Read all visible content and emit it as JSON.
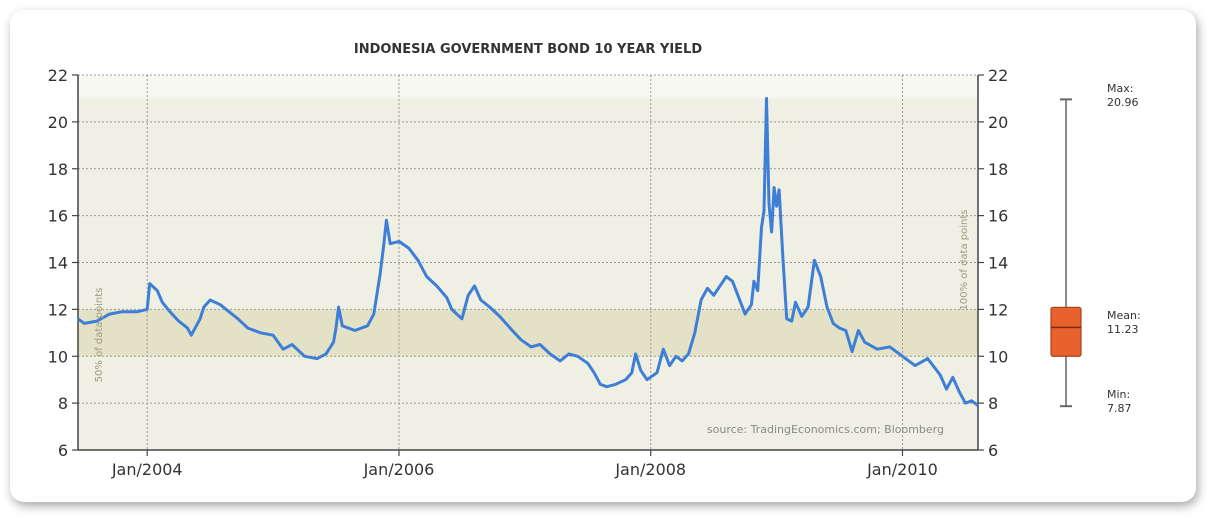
{
  "chart_data": {
    "type": "line",
    "title": "INDONESIA GOVERNMENT BOND 10 YEAR YIELD",
    "source_note": "source: TradingEconomics.com; Bloomberg",
    "ylim": [
      6,
      22
    ],
    "y_ticks": [
      6,
      8,
      10,
      12,
      14,
      16,
      18,
      20,
      22
    ],
    "x_tick_labels": [
      "Jan/2004",
      "Jan/2006",
      "Jan/2008",
      "Jan/2010"
    ],
    "x_tick_years": [
      2004.0,
      2006.0,
      2008.0,
      2010.0
    ],
    "x_range": [
      2003.45,
      2010.6
    ],
    "left_band_label": "50% of data points",
    "right_band_label": "100% of data points",
    "band_outer": [
      6,
      21
    ],
    "band_inner": [
      10,
      12
    ],
    "grid": true,
    "series": [
      {
        "color": "#3d7fd6",
        "points": [
          [
            2003.45,
            11.6
          ],
          [
            2003.5,
            11.4
          ],
          [
            2003.6,
            11.5
          ],
          [
            2003.7,
            11.8
          ],
          [
            2003.8,
            11.9
          ],
          [
            2003.92,
            11.9
          ],
          [
            2004.0,
            12.0
          ],
          [
            2004.02,
            13.1
          ],
          [
            2004.08,
            12.8
          ],
          [
            2004.12,
            12.3
          ],
          [
            2004.18,
            11.9
          ],
          [
            2004.25,
            11.5
          ],
          [
            2004.32,
            11.2
          ],
          [
            2004.35,
            10.9
          ],
          [
            2004.42,
            11.6
          ],
          [
            2004.45,
            12.1
          ],
          [
            2004.5,
            12.4
          ],
          [
            2004.58,
            12.2
          ],
          [
            2004.65,
            11.9
          ],
          [
            2004.72,
            11.6
          ],
          [
            2004.8,
            11.2
          ],
          [
            2004.9,
            11.0
          ],
          [
            2005.0,
            10.9
          ],
          [
            2005.08,
            10.3
          ],
          [
            2005.15,
            10.5
          ],
          [
            2005.25,
            10.0
          ],
          [
            2005.35,
            9.9
          ],
          [
            2005.42,
            10.1
          ],
          [
            2005.48,
            10.6
          ],
          [
            2005.5,
            11.2
          ],
          [
            2005.52,
            12.1
          ],
          [
            2005.55,
            11.3
          ],
          [
            2005.65,
            11.1
          ],
          [
            2005.75,
            11.3
          ],
          [
            2005.8,
            11.8
          ],
          [
            2005.85,
            13.5
          ],
          [
            2005.88,
            14.8
          ],
          [
            2005.9,
            15.8
          ],
          [
            2005.93,
            14.8
          ],
          [
            2006.0,
            14.9
          ],
          [
            2006.08,
            14.6
          ],
          [
            2006.15,
            14.1
          ],
          [
            2006.22,
            13.4
          ],
          [
            2006.3,
            13.0
          ],
          [
            2006.38,
            12.5
          ],
          [
            2006.42,
            12.0
          ],
          [
            2006.5,
            11.6
          ],
          [
            2006.55,
            12.6
          ],
          [
            2006.6,
            13.0
          ],
          [
            2006.65,
            12.4
          ],
          [
            2006.72,
            12.1
          ],
          [
            2006.8,
            11.7
          ],
          [
            2006.9,
            11.1
          ],
          [
            2006.97,
            10.7
          ],
          [
            2007.05,
            10.4
          ],
          [
            2007.12,
            10.5
          ],
          [
            2007.2,
            10.1
          ],
          [
            2007.28,
            9.8
          ],
          [
            2007.35,
            10.1
          ],
          [
            2007.42,
            10.0
          ],
          [
            2007.5,
            9.7
          ],
          [
            2007.55,
            9.3
          ],
          [
            2007.6,
            8.8
          ],
          [
            2007.65,
            8.7
          ],
          [
            2007.72,
            8.8
          ],
          [
            2007.8,
            9.0
          ],
          [
            2007.85,
            9.3
          ],
          [
            2007.88,
            10.1
          ],
          [
            2007.92,
            9.4
          ],
          [
            2007.97,
            9.0
          ],
          [
            2008.05,
            9.3
          ],
          [
            2008.1,
            10.3
          ],
          [
            2008.15,
            9.6
          ],
          [
            2008.2,
            10.0
          ],
          [
            2008.25,
            9.8
          ],
          [
            2008.3,
            10.1
          ],
          [
            2008.35,
            11.0
          ],
          [
            2008.4,
            12.4
          ],
          [
            2008.45,
            12.9
          ],
          [
            2008.5,
            12.6
          ],
          [
            2008.55,
            13.0
          ],
          [
            2008.6,
            13.4
          ],
          [
            2008.65,
            13.2
          ],
          [
            2008.7,
            12.5
          ],
          [
            2008.75,
            11.8
          ],
          [
            2008.8,
            12.2
          ],
          [
            2008.82,
            13.2
          ],
          [
            2008.85,
            12.8
          ],
          [
            2008.88,
            15.5
          ],
          [
            2008.9,
            16.2
          ],
          [
            2008.92,
            21.0
          ],
          [
            2008.94,
            16.5
          ],
          [
            2008.96,
            15.3
          ],
          [
            2008.98,
            17.2
          ],
          [
            2009.0,
            16.4
          ],
          [
            2009.02,
            17.1
          ],
          [
            2009.05,
            14.2
          ],
          [
            2009.08,
            11.6
          ],
          [
            2009.12,
            11.5
          ],
          [
            2009.15,
            12.3
          ],
          [
            2009.2,
            11.7
          ],
          [
            2009.25,
            12.1
          ],
          [
            2009.3,
            14.1
          ],
          [
            2009.35,
            13.4
          ],
          [
            2009.4,
            12.1
          ],
          [
            2009.45,
            11.4
          ],
          [
            2009.5,
            11.2
          ],
          [
            2009.55,
            11.1
          ],
          [
            2009.6,
            10.2
          ],
          [
            2009.65,
            11.1
          ],
          [
            2009.7,
            10.6
          ],
          [
            2009.8,
            10.3
          ],
          [
            2009.9,
            10.4
          ],
          [
            2010.0,
            10.0
          ],
          [
            2010.1,
            9.6
          ],
          [
            2010.2,
            9.9
          ],
          [
            2010.3,
            9.2
          ],
          [
            2010.35,
            8.6
          ],
          [
            2010.4,
            9.1
          ],
          [
            2010.45,
            8.5
          ],
          [
            2010.5,
            8.0
          ],
          [
            2010.55,
            8.1
          ],
          [
            2010.6,
            7.9
          ]
        ]
      }
    ],
    "side_panel": {
      "max_label": "Max:",
      "max_value": "20.96",
      "mean_label": "Mean:",
      "mean_value": "11.23",
      "min_label": "Min:",
      "min_value": "7.87",
      "box_color": "#e8622e"
    }
  }
}
